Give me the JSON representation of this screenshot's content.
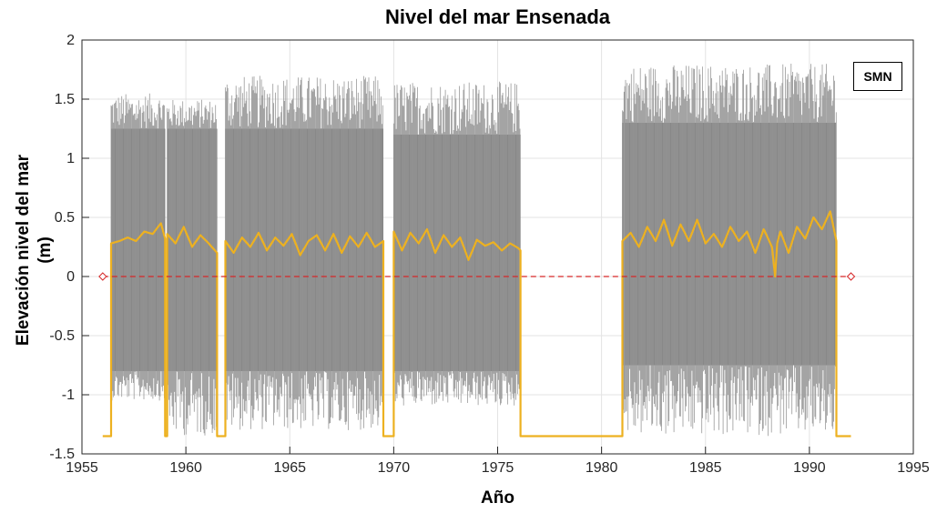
{
  "chart_data": {
    "type": "line",
    "title": "Nivel del mar Ensenada",
    "xlabel": "Año",
    "ylabel_lines": [
      "Elevación nivel del mar",
      "(m)"
    ],
    "xlim": [
      1955,
      1995
    ],
    "ylim": [
      -1.5,
      2
    ],
    "xticks": [
      1955,
      1960,
      1965,
      1970,
      1975,
      1980,
      1985,
      1990,
      1995
    ],
    "xtick_labels": [
      "1955",
      "1960",
      "1965",
      "1970",
      "1975",
      "1980",
      "1985",
      "1990",
      "1995"
    ],
    "yticks": [
      -1.5,
      -1,
      -0.5,
      0,
      0.5,
      1,
      1.5,
      2
    ],
    "ytick_labels": [
      "-1.5",
      "-1",
      "-0.5",
      "0",
      "0.5",
      "1",
      "1.5",
      "2"
    ],
    "grid": true,
    "legend": {
      "text": "SMN",
      "placement": "top-right"
    },
    "series": [
      {
        "kind": "hourly-sea-level-band",
        "color": "#404040",
        "segments": [
          {
            "start": 1956.4,
            "end": 1959.0,
            "low": -0.8,
            "high": 1.25,
            "peak_max": 1.55,
            "peak_min": -1.05
          },
          {
            "start": 1959.1,
            "end": 1961.5,
            "low": -0.8,
            "high": 1.25,
            "peak_max": 1.5,
            "peak_min": -1.35
          },
          {
            "start": 1961.9,
            "end": 1969.5,
            "low": -0.8,
            "high": 1.25,
            "peak_max": 1.7,
            "peak_min": -1.3
          },
          {
            "start": 1970.0,
            "end": 1976.1,
            "low": -0.8,
            "high": 1.2,
            "peak_max": 1.65,
            "peak_min": -1.1
          },
          {
            "start": 1981.0,
            "end": 1991.3,
            "low": -0.75,
            "high": 1.3,
            "peak_max": 1.8,
            "peak_min": -1.35
          }
        ]
      },
      {
        "kind": "monthly-mean",
        "color": "#EDB120",
        "x": [
          1956.0,
          1956.4,
          1956.4,
          1956.8,
          1957.2,
          1957.6,
          1958.0,
          1958.4,
          1958.8,
          1959.0,
          1959.0,
          1959.1,
          1959.1,
          1959.5,
          1959.9,
          1960.3,
          1960.7,
          1961.1,
          1961.5,
          1961.5,
          1961.9,
          1961.9,
          1962.3,
          1962.7,
          1963.1,
          1963.5,
          1963.9,
          1964.3,
          1964.7,
          1965.1,
          1965.5,
          1965.9,
          1966.3,
          1966.7,
          1967.1,
          1967.5,
          1967.9,
          1968.3,
          1968.7,
          1969.1,
          1969.5,
          1969.5,
          1970.0,
          1970.0,
          1970.4,
          1970.8,
          1971.2,
          1971.6,
          1972.0,
          1972.4,
          1972.8,
          1973.2,
          1973.6,
          1974.0,
          1974.4,
          1974.8,
          1975.2,
          1975.6,
          1976.0,
          1976.1,
          1976.1,
          1981.0,
          1981.0,
          1981.4,
          1981.8,
          1982.2,
          1982.6,
          1983.0,
          1983.4,
          1983.8,
          1984.2,
          1984.6,
          1985.0,
          1985.4,
          1985.8,
          1986.2,
          1986.6,
          1987.0,
          1987.4,
          1987.8,
          1988.2,
          1988.35,
          1988.45,
          1988.6,
          1989.0,
          1989.4,
          1989.8,
          1990.2,
          1990.6,
          1991.0,
          1991.3,
          1991.3,
          1992.0
        ],
        "y": [
          -1.35,
          -1.35,
          0.28,
          0.3,
          0.33,
          0.3,
          0.38,
          0.36,
          0.45,
          0.32,
          -1.35,
          -1.35,
          0.36,
          0.28,
          0.42,
          0.25,
          0.35,
          0.28,
          0.2,
          -1.35,
          -1.35,
          0.3,
          0.2,
          0.33,
          0.25,
          0.37,
          0.22,
          0.33,
          0.26,
          0.36,
          0.18,
          0.3,
          0.35,
          0.22,
          0.36,
          0.2,
          0.34,
          0.25,
          0.37,
          0.25,
          0.3,
          -1.35,
          -1.35,
          0.38,
          0.22,
          0.37,
          0.28,
          0.4,
          0.2,
          0.35,
          0.25,
          0.33,
          0.14,
          0.31,
          0.26,
          0.29,
          0.22,
          0.28,
          0.24,
          0.22,
          -1.35,
          -1.35,
          0.3,
          0.37,
          0.25,
          0.42,
          0.3,
          0.48,
          0.26,
          0.44,
          0.3,
          0.48,
          0.28,
          0.36,
          0.25,
          0.42,
          0.3,
          0.38,
          0.2,
          0.4,
          0.25,
          0.0,
          0.28,
          0.38,
          0.2,
          0.42,
          0.32,
          0.5,
          0.4,
          0.55,
          0.3,
          -1.35,
          -1.35
        ]
      },
      {
        "kind": "reference-line",
        "color": "#D62728",
        "dashed": true,
        "x": [
          1956.0,
          1992.0
        ],
        "y": [
          0,
          0
        ]
      }
    ]
  }
}
